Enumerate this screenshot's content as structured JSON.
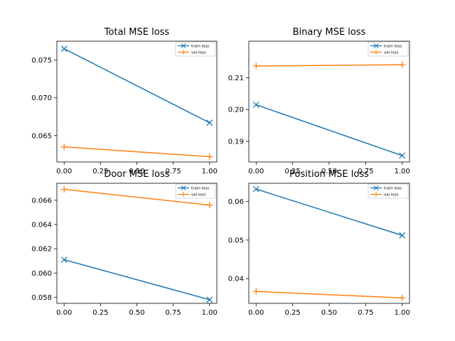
{
  "chart_data": [
    {
      "type": "line",
      "title": "Total MSE loss",
      "xlim": [
        -0.05,
        1.05
      ],
      "ylim": [
        0.0615,
        0.0775
      ],
      "xticks": [
        0,
        0.25,
        0.5,
        0.75,
        1
      ],
      "xtick_labels": [
        "0.00",
        "0.25",
        "0.50",
        "0.75",
        "1.00"
      ],
      "yticks": [
        0.065,
        0.07,
        0.075
      ],
      "ytick_labels": [
        "0.065",
        "0.070",
        "0.075"
      ],
      "legend_position": "top-right",
      "series": [
        {
          "name": "train loss",
          "x": [
            0,
            1
          ],
          "y": [
            0.0765,
            0.0667
          ],
          "color": "#1f77b4",
          "marker": "x"
        },
        {
          "name": "val loss",
          "x": [
            0,
            1
          ],
          "y": [
            0.0635,
            0.0622
          ],
          "color": "#ff7f0e",
          "marker": "+"
        }
      ]
    },
    {
      "type": "line",
      "title": "Binary MSE loss",
      "xlim": [
        -0.05,
        1.05
      ],
      "ylim": [
        0.1835,
        0.2215
      ],
      "xticks": [
        0,
        0.25,
        0.5,
        0.75,
        1
      ],
      "xtick_labels": [
        "0.00",
        "0.25",
        "0.50",
        "0.75",
        "1.00"
      ],
      "yticks": [
        0.19,
        0.2,
        0.21
      ],
      "ytick_labels": [
        "0.19",
        "0.20",
        "0.21"
      ],
      "legend_position": "top-right",
      "series": [
        {
          "name": "train loss",
          "x": [
            0,
            1
          ],
          "y": [
            0.2015,
            0.1855
          ],
          "color": "#1f77b4",
          "marker": "x"
        },
        {
          "name": "val loss",
          "x": [
            0,
            1
          ],
          "y": [
            0.2137,
            0.2141
          ],
          "color": "#ff7f0e",
          "marker": "+"
        }
      ]
    },
    {
      "type": "line",
      "title": "Door MSE loss",
      "xlim": [
        -0.05,
        1.05
      ],
      "ylim": [
        0.0575,
        0.0674
      ],
      "xticks": [
        0,
        0.25,
        0.5,
        0.75,
        1
      ],
      "xtick_labels": [
        "0.00",
        "0.25",
        "0.50",
        "0.75",
        "1.00"
      ],
      "yticks": [
        0.058,
        0.06,
        0.062,
        0.064,
        0.066
      ],
      "ytick_labels": [
        "0.058",
        "0.060",
        "0.062",
        "0.064",
        "0.066"
      ],
      "legend_position": "top-right",
      "series": [
        {
          "name": "train loss",
          "x": [
            0,
            1
          ],
          "y": [
            0.0611,
            0.0578
          ],
          "color": "#1f77b4",
          "marker": "x"
        },
        {
          "name": "val loss",
          "x": [
            0,
            1
          ],
          "y": [
            0.0669,
            0.0656
          ],
          "color": "#ff7f0e",
          "marker": "+"
        }
      ]
    },
    {
      "type": "line",
      "title": "Position MSE loss",
      "xlim": [
        -0.05,
        1.05
      ],
      "ylim": [
        0.0336,
        0.0647
      ],
      "xticks": [
        0,
        0.25,
        0.5,
        0.75,
        1
      ],
      "xtick_labels": [
        "0.00",
        "0.25",
        "0.50",
        "0.75",
        "1.00"
      ],
      "yticks": [
        0.04,
        0.05,
        0.06
      ],
      "ytick_labels": [
        "0.04",
        "0.05",
        "0.06"
      ],
      "legend_position": "top-right",
      "series": [
        {
          "name": "train loss",
          "x": [
            0,
            1
          ],
          "y": [
            0.0632,
            0.0512
          ],
          "color": "#1f77b4",
          "marker": "x"
        },
        {
          "name": "val loss",
          "x": [
            0,
            1
          ],
          "y": [
            0.0367,
            0.035
          ],
          "color": "#ff7f0e",
          "marker": "+"
        }
      ]
    }
  ]
}
